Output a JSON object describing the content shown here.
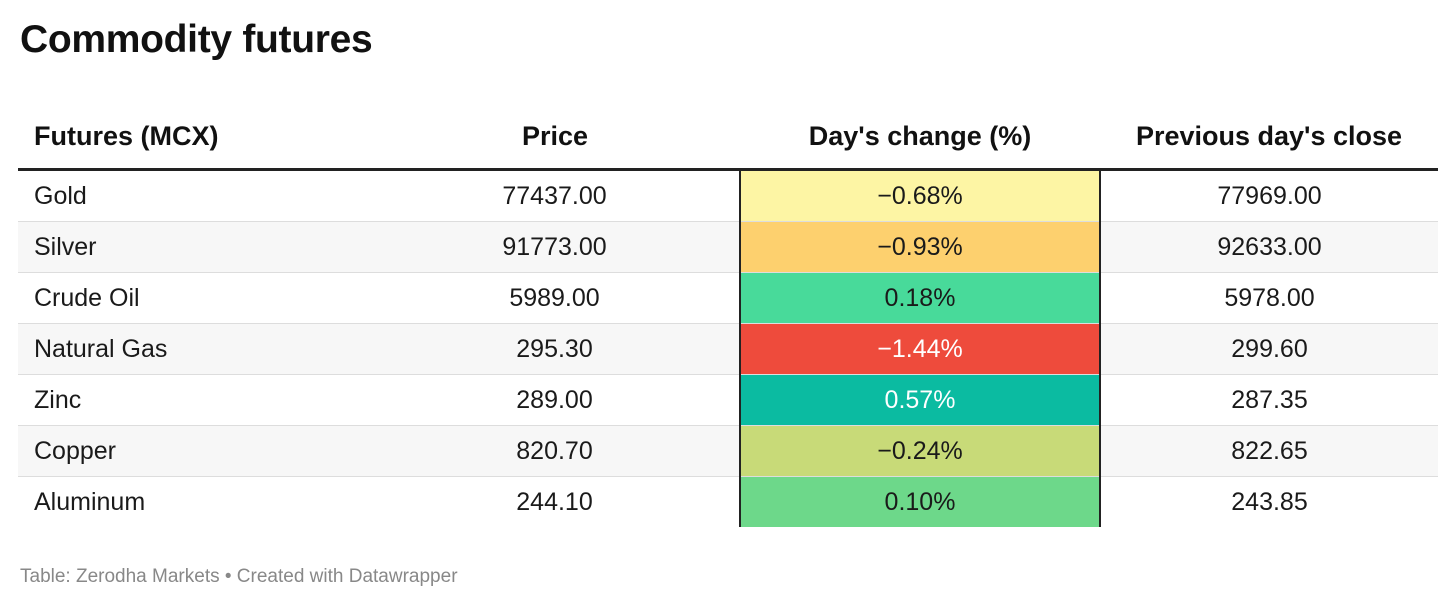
{
  "title": "Commodity futures",
  "footer": "Table: Zerodha Markets • Created with Datawrapper",
  "chart_data": {
    "type": "table",
    "title": "Commodity futures",
    "columns": [
      "Futures (MCX)",
      "Price",
      "Day's change (%)",
      "Previous day's close"
    ],
    "rows": [
      {
        "name": "Gold",
        "price": "77437.00",
        "change": "−0.68%",
        "prev": "77969.00",
        "change_color": "#fdf5a4",
        "change_text_color": "#1a1a1a"
      },
      {
        "name": "Silver",
        "price": "91773.00",
        "change": "−0.93%",
        "prev": "92633.00",
        "change_color": "#fdd06e",
        "change_text_color": "#1a1a1a"
      },
      {
        "name": "Crude Oil",
        "price": "5989.00",
        "change": "0.18%",
        "prev": "5978.00",
        "change_color": "#48da9a",
        "change_text_color": "#1a1a1a"
      },
      {
        "name": "Natural Gas",
        "price": "295.30",
        "change": "−1.44%",
        "prev": "299.60",
        "change_color": "#ee4b3c",
        "change_text_color": "#ffffff"
      },
      {
        "name": "Zinc",
        "price": "289.00",
        "change": "0.57%",
        "prev": "287.35",
        "change_color": "#0bbba1",
        "change_text_color": "#ffffff"
      },
      {
        "name": "Copper",
        "price": "820.70",
        "change": "−0.24%",
        "prev": "822.65",
        "change_color": "#c8da78",
        "change_text_color": "#1a1a1a"
      },
      {
        "name": "Aluminum",
        "price": "244.10",
        "change": "0.10%",
        "prev": "243.85",
        "change_color": "#6dd88a",
        "change_text_color": "#1a1a1a"
      }
    ],
    "grid": true
  }
}
